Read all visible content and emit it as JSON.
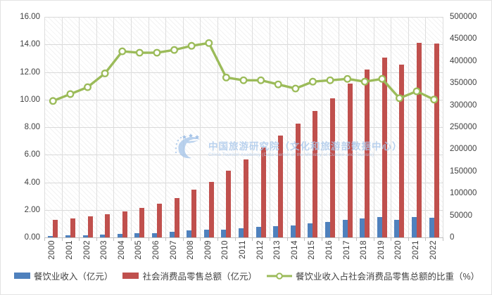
{
  "chart_data": {
    "type": "combo",
    "categories": [
      "2000",
      "2001",
      "2002",
      "2003",
      "2004",
      "2005",
      "2006",
      "2007",
      "2008",
      "2009",
      "2010",
      "2011",
      "2012",
      "2013",
      "2014",
      "2015",
      "2016",
      "2017",
      "2018",
      "2019",
      "2020",
      "2021",
      "2022"
    ],
    "series": [
      {
        "name": "餐饮业收入（亿元）",
        "type": "bar",
        "axis": "right",
        "color": "#4F81BD",
        "values": [
          3753,
          4369,
          5092,
          6066,
          7486,
          8887,
          10345,
          12352,
          15404,
          17998,
          17648,
          20543,
          23448,
          25392,
          27860,
          32310,
          35799,
          39644,
          42716,
          46721,
          39527,
          46895,
          43941
        ]
      },
      {
        "name": "社会消费品零售总额（亿元）",
        "type": "bar",
        "axis": "right",
        "color": "#C0504D",
        "values": [
          39106,
          43055,
          48136,
          52516,
          59501,
          67177,
          76410,
          89210,
          108488,
          125343,
          151000,
          177000,
          204000,
          231000,
          258000,
          287000,
          316000,
          348000,
          381000,
          408000,
          392000,
          441000,
          440000
        ]
      },
      {
        "name": "餐饮业收入占社会消费品零售总额的比重（%）",
        "type": "line",
        "axis": "left",
        "color": "#9BBB59",
        "values": [
          9.9,
          10.4,
          10.9,
          11.9,
          13.5,
          13.4,
          13.4,
          13.6,
          13.9,
          14.1,
          11.6,
          11.4,
          11.4,
          11.1,
          10.8,
          11.3,
          11.4,
          11.5,
          11.3,
          11.5,
          10.1,
          10.6,
          10.0
        ]
      }
    ],
    "left_axis": {
      "min": 0,
      "max": 16,
      "step": 2,
      "tick_labels": [
        "16.00",
        "14.00",
        "12.00",
        "10.00",
        "8.00",
        "6.00",
        "4.00",
        "2.00",
        "0.00"
      ]
    },
    "right_axis": {
      "min": 0,
      "max": 500000,
      "step": 50000,
      "tick_labels": [
        "500000",
        "450000",
        "400000",
        "350000",
        "300000",
        "250000",
        "200000",
        "150000",
        "100000",
        "50000",
        "0"
      ]
    },
    "grid": true,
    "legend_position": "bottom",
    "title": "",
    "xlabel": "",
    "ylabel": ""
  },
  "watermark": {
    "line1": "中国旅游研究院（文化和旅游部数据中心）",
    "line2": "China Tourism Academy (Data Center of the Ministry of Culture and Tourism)"
  },
  "colors": {
    "bar_blue": "#4F81BD",
    "bar_red": "#C0504D",
    "line_green": "#9BBB59",
    "gridline": "#D9D9D9",
    "axis_text": "#404040",
    "watermark_blue": "#A9C7EA"
  }
}
